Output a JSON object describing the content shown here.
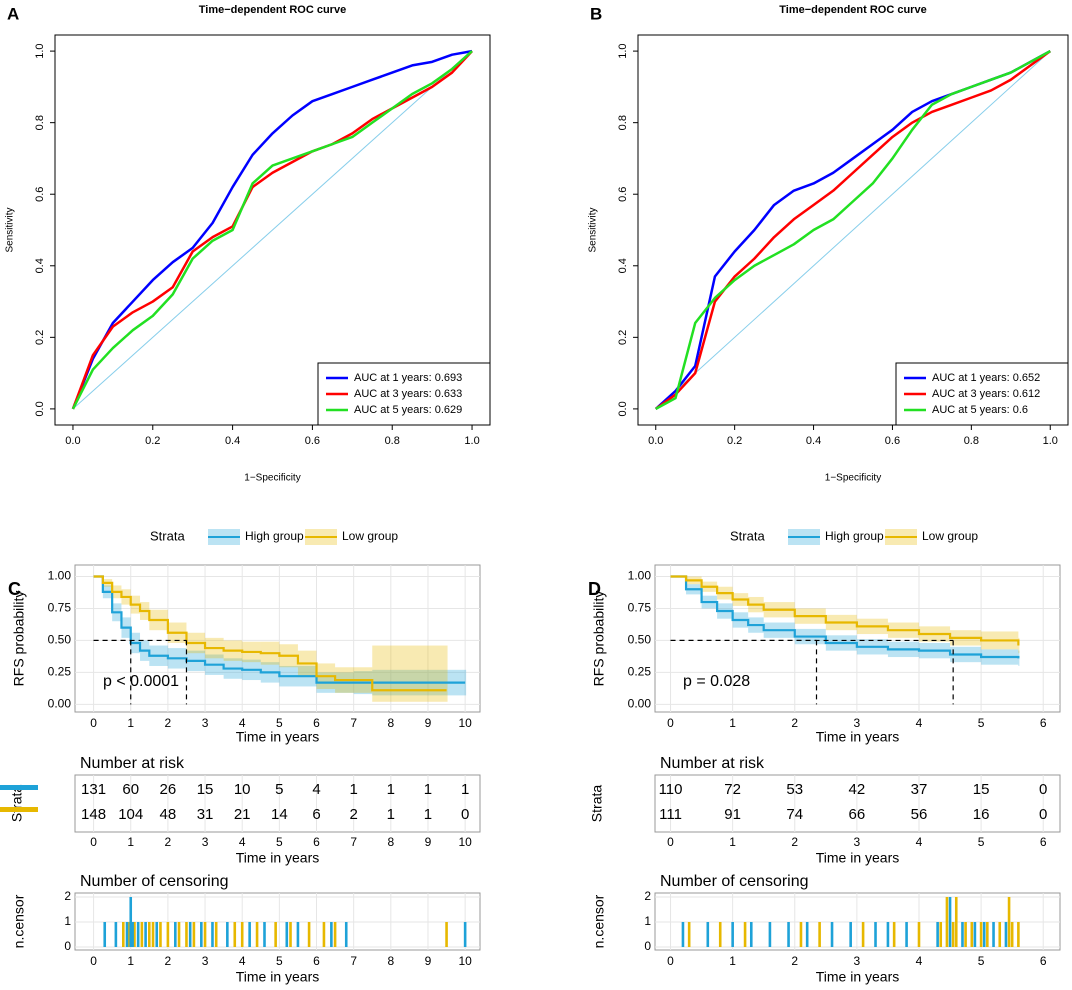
{
  "chart_data": [
    {
      "type": "line",
      "label": "A",
      "title": "Time−dependent ROC curve",
      "x_label": "1−Specificity",
      "y_label": "Sensitivity",
      "xlim": [
        -0.045,
        1.045
      ],
      "ylim": [
        -0.045,
        1.045
      ],
      "xticks": [
        {
          "value": 0,
          "label": "0.0"
        },
        0.2,
        0.4,
        0.6,
        0.8,
        {
          "value": 1,
          "label": "1.0"
        }
      ],
      "yticks": [
        {
          "value": 0,
          "label": "0.0"
        },
        0.2,
        0.4,
        0.6,
        0.8,
        {
          "value": 1,
          "label": "1.0"
        }
      ],
      "legend": "bottomright",
      "reference_color": "#87ceeb",
      "x": [
        0,
        0.05,
        0.1,
        0.15,
        0.2,
        0.25,
        0.3,
        0.35,
        0.4,
        0.45,
        0.5,
        0.55,
        0.6,
        0.65,
        0.7,
        0.75,
        0.8,
        0.85,
        0.9,
        0.95,
        1
      ],
      "series": [
        {
          "name": "AUC at 1 years: 0.693",
          "color": "#0000ff",
          "values": [
            0,
            0.14,
            0.24,
            0.3,
            0.36,
            0.41,
            0.45,
            0.52,
            0.62,
            0.71,
            0.77,
            0.82,
            0.86,
            0.88,
            0.9,
            0.92,
            0.94,
            0.96,
            0.97,
            0.99,
            1
          ]
        },
        {
          "name": "AUC at 3 years: 0.633",
          "color": "#ff0000",
          "values": [
            0,
            0.15,
            0.23,
            0.27,
            0.3,
            0.34,
            0.44,
            0.48,
            0.51,
            0.62,
            0.66,
            0.69,
            0.72,
            0.74,
            0.77,
            0.81,
            0.84,
            0.87,
            0.9,
            0.94,
            1
          ]
        },
        {
          "name": "AUC at 5 years: 0.629",
          "color": "#22e022",
          "values": [
            0,
            0.11,
            0.17,
            0.22,
            0.26,
            0.32,
            0.42,
            0.47,
            0.5,
            0.63,
            0.68,
            0.7,
            0.72,
            0.74,
            0.76,
            0.8,
            0.84,
            0.88,
            0.91,
            0.95,
            1
          ]
        }
      ]
    },
    {
      "type": "line",
      "label": "B",
      "title": "Time−dependent ROC curve",
      "x_label": "1−Specificity",
      "y_label": "Sensitivity",
      "xlim": [
        -0.045,
        1.045
      ],
      "ylim": [
        -0.045,
        1.045
      ],
      "xticks": [
        {
          "value": 0,
          "label": "0.0"
        },
        0.2,
        0.4,
        0.6,
        0.8,
        {
          "value": 1,
          "label": "1.0"
        }
      ],
      "yticks": [
        {
          "value": 0,
          "label": "0.0"
        },
        0.2,
        0.4,
        0.6,
        0.8,
        {
          "value": 1,
          "label": "1.0"
        }
      ],
      "legend": "bottomright",
      "reference_color": "#87ceeb",
      "x": [
        0,
        0.05,
        0.1,
        0.15,
        0.2,
        0.25,
        0.3,
        0.35,
        0.4,
        0.45,
        0.5,
        0.55,
        0.6,
        0.65,
        0.7,
        0.75,
        0.8,
        0.85,
        0.9,
        0.95,
        1
      ],
      "series": [
        {
          "name": "AUC at 1 years: 0.652",
          "color": "#0000ff",
          "values": [
            0,
            0.05,
            0.12,
            0.37,
            0.44,
            0.5,
            0.57,
            0.61,
            0.63,
            0.66,
            0.7,
            0.74,
            0.78,
            0.83,
            0.86,
            0.88,
            0.9,
            0.92,
            0.94,
            0.97,
            1
          ]
        },
        {
          "name": "AUC at 3 years: 0.612",
          "color": "#ff0000",
          "values": [
            0,
            0.04,
            0.1,
            0.3,
            0.37,
            0.42,
            0.48,
            0.53,
            0.57,
            0.61,
            0.66,
            0.71,
            0.76,
            0.8,
            0.83,
            0.85,
            0.87,
            0.89,
            0.92,
            0.96,
            1
          ]
        },
        {
          "name": "AUC at 5 years: 0.6",
          "color": "#22e022",
          "values": [
            0,
            0.03,
            0.24,
            0.31,
            0.36,
            0.4,
            0.43,
            0.46,
            0.5,
            0.53,
            0.58,
            0.63,
            0.7,
            0.78,
            0.85,
            0.88,
            0.9,
            0.92,
            0.94,
            0.97,
            1
          ]
        }
      ]
    },
    {
      "type": "step",
      "label": "C",
      "legend_title": "Strata",
      "x_label": "Time in years",
      "y_label": "RFS probability",
      "annotation": "p < 0.0001",
      "xlim": [
        -0.5,
        10.4
      ],
      "ylim": [
        -0.06,
        1.09
      ],
      "grid": true,
      "median_level": 0.5,
      "xticks": [
        0,
        1,
        2,
        3,
        4,
        5,
        6,
        7,
        8,
        9,
        10
      ],
      "yticks": [
        {
          "value": 0,
          "label": "0.00"
        },
        0.25,
        {
          "value": 0.5,
          "label": "0.50"
        },
        0.75,
        {
          "value": 1,
          "label": "1.00"
        }
      ],
      "series": [
        {
          "name": "High group",
          "color": "#1ea2d8",
          "median": 1.0,
          "x": [
            0,
            0.25,
            0.5,
            0.75,
            1,
            1.25,
            1.5,
            2,
            2.5,
            3,
            3.5,
            4,
            4.5,
            5,
            6,
            7,
            7.5,
            10
          ],
          "values": [
            1,
            0.88,
            0.72,
            0.6,
            0.48,
            0.42,
            0.38,
            0.36,
            0.34,
            0.31,
            0.28,
            0.27,
            0.25,
            0.22,
            0.17,
            0.17,
            0.17,
            0.17
          ],
          "lower": [
            1,
            0.83,
            0.65,
            0.52,
            0.4,
            0.34,
            0.3,
            0.28,
            0.26,
            0.23,
            0.2,
            0.19,
            0.17,
            0.14,
            0.09,
            0.08,
            0.07,
            0.07
          ],
          "upper": [
            1,
            0.93,
            0.79,
            0.68,
            0.56,
            0.5,
            0.46,
            0.44,
            0.42,
            0.39,
            0.36,
            0.35,
            0.33,
            0.3,
            0.25,
            0.26,
            0.27,
            0.27
          ]
        },
        {
          "name": "Low group",
          "color": "#e7b800",
          "median": 2.5,
          "x": [
            0,
            0.25,
            0.5,
            0.75,
            1,
            1.25,
            1.5,
            2,
            2.5,
            3,
            3.5,
            4,
            4.5,
            5,
            5.5,
            6,
            6.5,
            7.5,
            9.5
          ],
          "values": [
            1,
            0.95,
            0.88,
            0.84,
            0.78,
            0.73,
            0.66,
            0.56,
            0.48,
            0.44,
            0.42,
            0.41,
            0.4,
            0.38,
            0.32,
            0.22,
            0.19,
            0.11,
            0.11
          ],
          "lower": [
            1,
            0.92,
            0.83,
            0.78,
            0.71,
            0.66,
            0.58,
            0.48,
            0.4,
            0.36,
            0.34,
            0.33,
            0.31,
            0.29,
            0.22,
            0.12,
            0.09,
            0.02,
            0.02
          ],
          "upper": [
            1,
            0.98,
            0.93,
            0.9,
            0.85,
            0.8,
            0.74,
            0.64,
            0.56,
            0.52,
            0.5,
            0.49,
            0.49,
            0.47,
            0.42,
            0.32,
            0.29,
            0.46,
            0.46
          ]
        }
      ]
    },
    {
      "type": "table",
      "title": "Number at risk",
      "x_label": "Time in years",
      "y_label": "Strata",
      "xlim": [
        -0.5,
        10.4
      ],
      "times": [
        0,
        1,
        2,
        3,
        4,
        5,
        6,
        7,
        8,
        9,
        10
      ],
      "series": [
        {
          "color": "#1ea2d8",
          "values": [
            131,
            60,
            26,
            15,
            10,
            5,
            4,
            1,
            1,
            1,
            1
          ]
        },
        {
          "color": "#e7b800",
          "values": [
            148,
            104,
            48,
            31,
            21,
            14,
            6,
            2,
            1,
            1,
            0
          ]
        }
      ]
    },
    {
      "type": "bar",
      "title": "Number of censoring",
      "x_label": "Time in years",
      "y_label": "n.censor",
      "xlim": [
        -0.5,
        10.4
      ],
      "ylim": [
        -0.12,
        2.16
      ],
      "grid": true,
      "xticks": [
        0,
        1,
        2,
        3,
        4,
        5,
        6,
        7,
        8,
        9,
        10
      ],
      "yticks": [
        0,
        1,
        2
      ],
      "series": [
        {
          "color": "#e7b800",
          "x": [
            0.8,
            0.95,
            1.1,
            1.3,
            1.5,
            1.6,
            1.8,
            2.0,
            2.3,
            2.5,
            2.7,
            3.0,
            3.3,
            3.8,
            4.0,
            4.4,
            4.9,
            5.3,
            5.8,
            6.2,
            6.5,
            9.5
          ],
          "values": [
            1,
            1,
            1,
            1,
            1,
            1,
            1,
            1,
            1,
            1,
            1,
            1,
            1,
            1,
            1,
            1,
            1,
            1,
            1,
            1,
            1,
            1
          ]
        },
        {
          "color": "#1ea2d8",
          "x": [
            0.3,
            0.6,
            0.9,
            1.0,
            1.05,
            1.2,
            1.4,
            1.7,
            2.2,
            2.6,
            2.9,
            3.2,
            3.6,
            4.2,
            4.6,
            5.2,
            5.5,
            6.4,
            6.8,
            10
          ],
          "values": [
            1,
            1,
            1,
            2,
            1,
            1,
            1,
            1,
            1,
            1,
            1,
            1,
            1,
            1,
            1,
            1,
            1,
            1,
            1,
            1
          ]
        }
      ]
    },
    {
      "type": "step",
      "label": "D",
      "legend_title": "Strata",
      "x_label": "Time in years",
      "y_label": "RFS probability",
      "annotation": "p = 0.028",
      "xlim": [
        -0.25,
        6.27
      ],
      "ylim": [
        -0.06,
        1.09
      ],
      "grid": true,
      "median_level": 0.5,
      "xticks": [
        0,
        1,
        2,
        3,
        4,
        5,
        6
      ],
      "yticks": [
        {
          "value": 0,
          "label": "0.00"
        },
        0.25,
        {
          "value": 0.5,
          "label": "0.50"
        },
        0.75,
        {
          "value": 1,
          "label": "1.00"
        }
      ],
      "series": [
        {
          "name": "High group",
          "color": "#1ea2d8",
          "median": 2.35,
          "x": [
            0,
            0.25,
            0.5,
            0.75,
            1,
            1.25,
            1.5,
            2,
            2.5,
            3,
            3.5,
            4,
            4.5,
            5,
            5.6
          ],
          "values": [
            1,
            0.9,
            0.8,
            0.73,
            0.66,
            0.62,
            0.58,
            0.53,
            0.48,
            0.45,
            0.43,
            0.42,
            0.39,
            0.37,
            0.36
          ],
          "lower": [
            1,
            0.86,
            0.75,
            0.67,
            0.6,
            0.56,
            0.52,
            0.47,
            0.42,
            0.39,
            0.37,
            0.36,
            0.33,
            0.31,
            0.3
          ],
          "upper": [
            1,
            0.94,
            0.85,
            0.79,
            0.72,
            0.68,
            0.64,
            0.59,
            0.54,
            0.51,
            0.49,
            0.48,
            0.45,
            0.43,
            0.42
          ]
        },
        {
          "name": "Low group",
          "color": "#e7b800",
          "median": 4.55,
          "x": [
            0,
            0.25,
            0.5,
            0.75,
            1,
            1.25,
            1.5,
            2,
            2.5,
            3,
            3.5,
            4,
            4.5,
            5,
            5.6
          ],
          "values": [
            1,
            0.97,
            0.92,
            0.87,
            0.82,
            0.78,
            0.74,
            0.69,
            0.64,
            0.61,
            0.58,
            0.55,
            0.52,
            0.5,
            0.46
          ],
          "lower": [
            1,
            0.94,
            0.88,
            0.82,
            0.77,
            0.72,
            0.68,
            0.63,
            0.58,
            0.55,
            0.52,
            0.49,
            0.46,
            0.43,
            0.4
          ],
          "upper": [
            1,
            1.0,
            0.96,
            0.92,
            0.87,
            0.84,
            0.8,
            0.75,
            0.7,
            0.67,
            0.64,
            0.61,
            0.58,
            0.57,
            0.52
          ]
        }
      ]
    },
    {
      "type": "table",
      "title": "Number at risk",
      "x_label": "Time in years",
      "y_label": "Strata",
      "xlim": [
        -0.25,
        6.27
      ],
      "times": [
        0,
        1,
        2,
        3,
        4,
        5,
        6
      ],
      "series": [
        {
          "color": "#1ea2d8",
          "values": [
            110,
            72,
            53,
            42,
            37,
            15,
            0
          ]
        },
        {
          "color": "#e7b800",
          "values": [
            111,
            91,
            74,
            66,
            56,
            16,
            0
          ]
        }
      ]
    },
    {
      "type": "bar",
      "title": "Number of censoring",
      "x_label": "Time in years",
      "y_label": "n.censor",
      "xlim": [
        -0.25,
        6.27
      ],
      "ylim": [
        -0.12,
        2.16
      ],
      "grid": true,
      "xticks": [
        0,
        1,
        2,
        3,
        4,
        5,
        6
      ],
      "yticks": [
        0,
        1,
        2
      ],
      "series": [
        {
          "color": "#e7b800",
          "x": [
            0.3,
            0.8,
            1.2,
            2.1,
            2.4,
            3.1,
            3.6,
            4.0,
            4.35,
            4.45,
            4.55,
            4.6,
            4.75,
            4.85,
            5.0,
            5.1,
            5.3,
            5.45,
            5.5,
            5.6
          ],
          "values": [
            1,
            1,
            1,
            1,
            1,
            1,
            1,
            1,
            1,
            2,
            1,
            2,
            1,
            1,
            1,
            1,
            1,
            2,
            1,
            1
          ]
        },
        {
          "color": "#1ea2d8",
          "x": [
            0.2,
            0.6,
            1.0,
            1.3,
            1.6,
            1.9,
            2.2,
            2.6,
            2.9,
            3.3,
            3.5,
            3.8,
            4.3,
            4.5,
            4.7,
            4.9,
            5.05,
            5.2,
            5.4
          ],
          "values": [
            1,
            1,
            1,
            1,
            1,
            1,
            1,
            1,
            1,
            1,
            1,
            1,
            1,
            2,
            1,
            1,
            1,
            1,
            1
          ]
        }
      ]
    }
  ]
}
